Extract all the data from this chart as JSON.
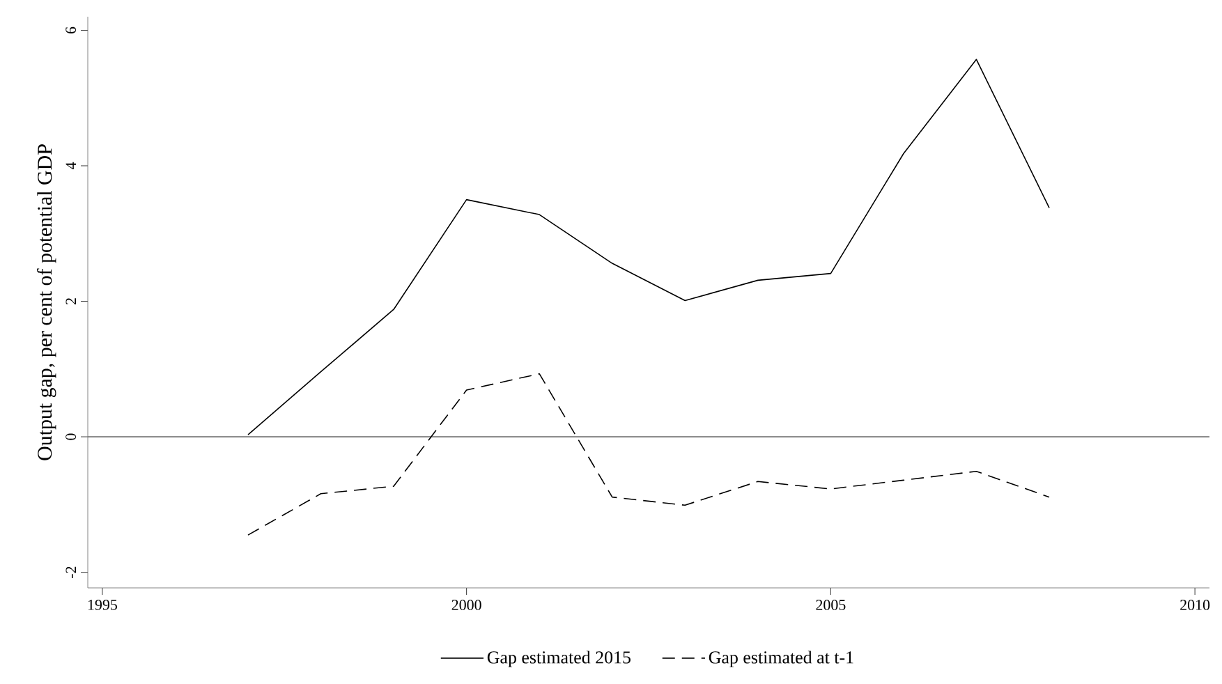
{
  "chart_data": {
    "type": "line",
    "ylabel": "Output gap, per cent of potential GDP",
    "x": [
      1997,
      1998,
      1999,
      2000,
      2001,
      2002,
      2003,
      2004,
      2005,
      2006,
      2007,
      2008
    ],
    "series": [
      {
        "name": "Gap estimated 2015",
        "color": "#000000",
        "line_style": "solid",
        "values": [
          0.03,
          0.96,
          1.88,
          3.5,
          3.28,
          2.56,
          2.01,
          2.31,
          2.41,
          4.18,
          5.57,
          3.38
        ]
      },
      {
        "name": "Gap estimated at t-1",
        "color": "#000000",
        "line_style": "dashed",
        "values": [
          -1.45,
          -0.84,
          -0.73,
          0.69,
          0.93,
          -0.89,
          -1.01,
          -0.66,
          -0.77,
          -0.64,
          -0.51,
          -0.89
        ]
      }
    ],
    "xlim": [
      1994.8,
      2010.2
    ],
    "ylim": [
      -2.23,
      6.2
    ],
    "xticks": [
      1995,
      2000,
      2005,
      2010
    ],
    "yticks": [
      -2,
      0,
      2,
      4,
      6
    ],
    "ref_lines": [
      {
        "axis": "y",
        "value": 0,
        "color": "#707070"
      }
    ],
    "grid": false,
    "legend": "bottom",
    "marker": "none"
  }
}
